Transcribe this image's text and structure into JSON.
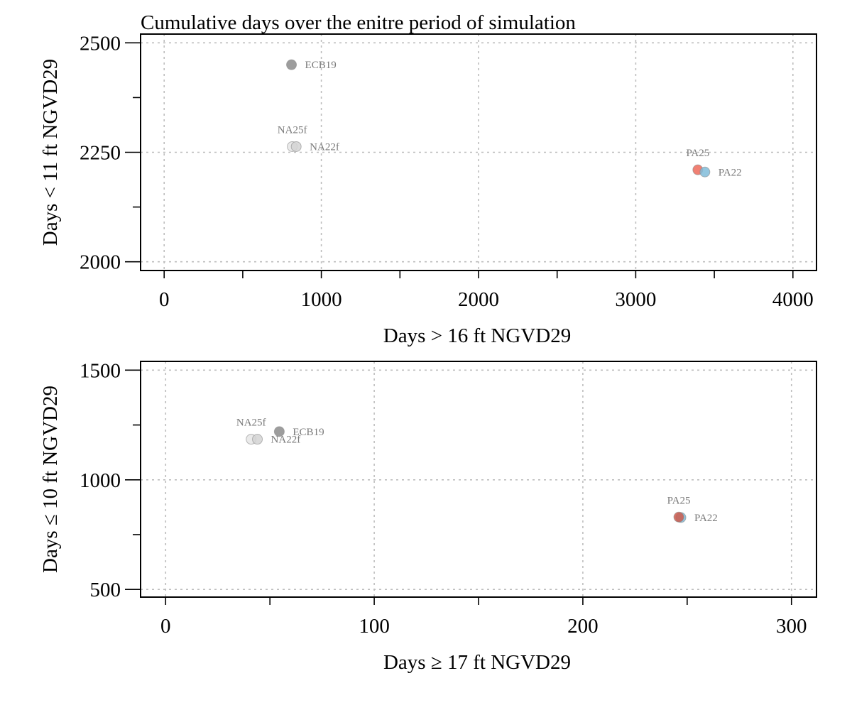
{
  "chart_data": [
    {
      "type": "scatter",
      "title": "Cumulative days over the enitre period of simulation",
      "xlabel": "Days > 16 ft NGVD29",
      "ylabel": "Days < 11 ft NGVD29",
      "xlim": [
        -150,
        4150
      ],
      "ylim": [
        1980,
        2520
      ],
      "xticks": [
        0,
        1000,
        2000,
        3000,
        4000
      ],
      "xticks_minor": [
        500,
        1500,
        2500,
        3500
      ],
      "yticks": [
        2000,
        2250,
        2500
      ],
      "yticks_minor": [
        2125,
        2375
      ],
      "grid": true,
      "points": [
        {
          "label": "ECB19",
          "x": 810,
          "y": 2450,
          "color": "#8c8c8c",
          "label_pos": "right"
        },
        {
          "label": "NA25f",
          "x": 815,
          "y": 2263,
          "color": "#e6e6e6",
          "label_pos": "above"
        },
        {
          "label": "NA22f",
          "x": 840,
          "y": 2263,
          "color": "#d3d3d3",
          "label_pos": "right"
        },
        {
          "label": "PA25",
          "x": 3395,
          "y": 2210,
          "color": "#ee6a5b",
          "label_pos": "above"
        },
        {
          "label": "PA22",
          "x": 3440,
          "y": 2205,
          "color": "#80bcd9",
          "label_pos": "right"
        }
      ]
    },
    {
      "type": "scatter",
      "title": "",
      "xlabel": "Days ≥ 17 ft NGVD29",
      "ylabel": "Days ≤ 10 ft NGVD29",
      "xlim": [
        -12,
        312
      ],
      "ylim": [
        465,
        1540
      ],
      "xticks": [
        0,
        100,
        200,
        300
      ],
      "xticks_minor": [
        50,
        150,
        250
      ],
      "yticks": [
        500,
        1000,
        1500
      ],
      "yticks_minor": [
        750,
        1250
      ],
      "grid": true,
      "points": [
        {
          "label": "NA25f",
          "x": 41,
          "y": 1185,
          "color": "#e6e6e6",
          "label_pos": "above"
        },
        {
          "label": "NA22f",
          "x": 44,
          "y": 1185,
          "color": "#d3d3d3",
          "label_pos": "right"
        },
        {
          "label": "ECB19",
          "x": 54.5,
          "y": 1220,
          "color": "#8c8c8c",
          "label_pos": "right"
        },
        {
          "label": "PA22",
          "x": 247,
          "y": 828,
          "color": "#80bcd9",
          "label_pos": "right"
        },
        {
          "label": "PA25",
          "x": 246,
          "y": 830,
          "color": "#cd5a4e",
          "label_pos": "above"
        }
      ]
    }
  ]
}
